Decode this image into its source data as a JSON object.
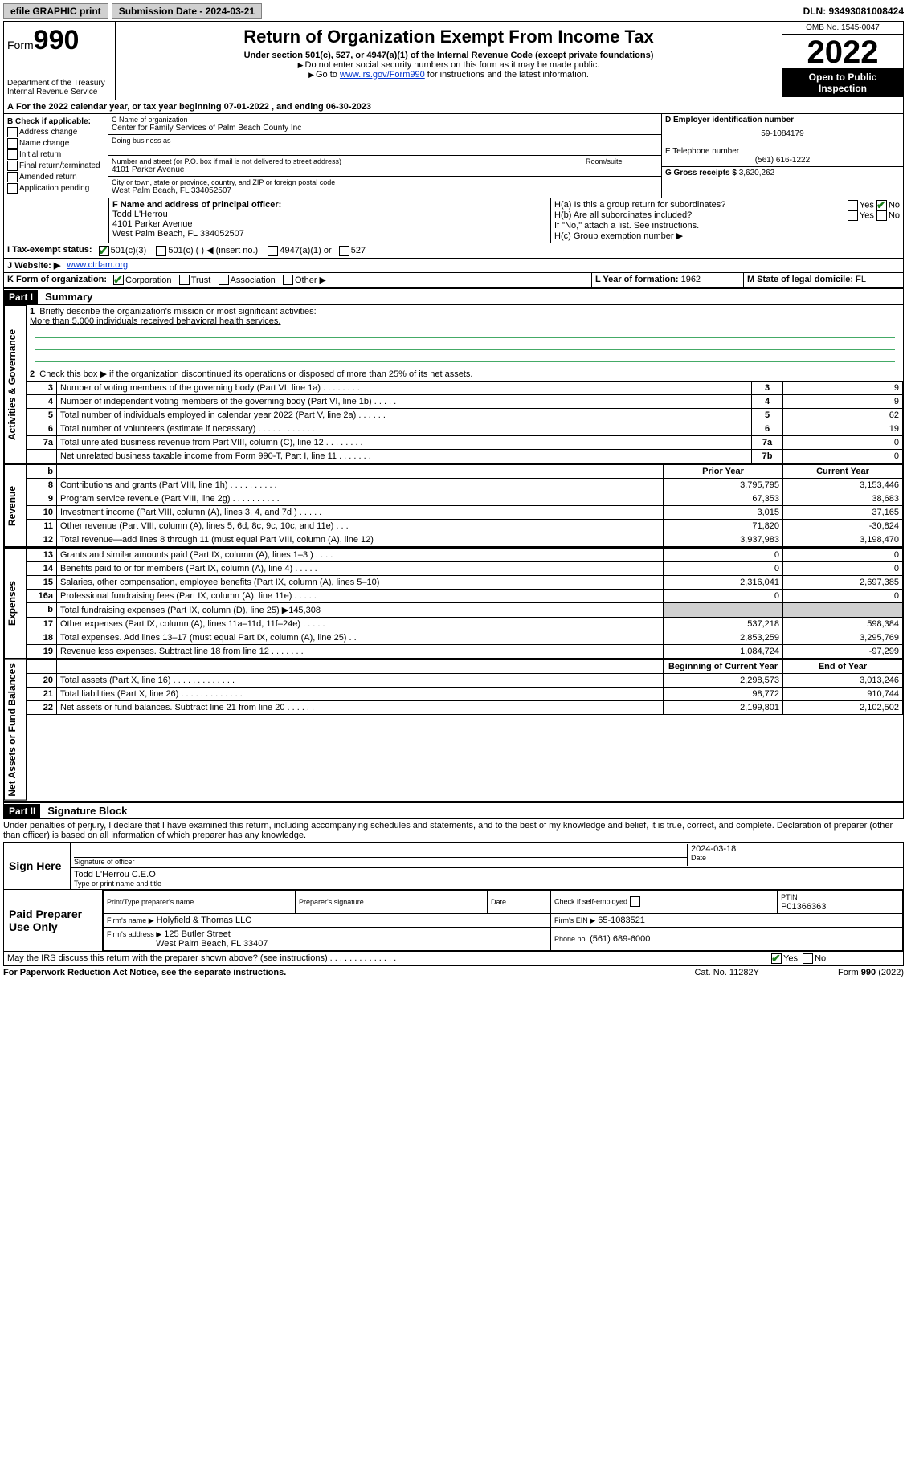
{
  "topbar": {
    "efile": "efile GRAPHIC print",
    "submission_label": "Submission Date - 2024-03-21",
    "dln": "DLN: 93493081008424"
  },
  "header": {
    "form_label": "Form",
    "form_no": "990",
    "dept": "Department of the Treasury",
    "irs": "Internal Revenue Service",
    "title": "Return of Organization Exempt From Income Tax",
    "sub": "Under section 501(c), 527, or 4947(a)(1) of the Internal Revenue Code (except private foundations)",
    "note1": "Do not enter social security numbers on this form as it may be made public.",
    "note2_pre": "Go to ",
    "note2_link": "www.irs.gov/Form990",
    "note2_post": " for instructions and the latest information.",
    "omb": "OMB No. 1545-0047",
    "year": "2022",
    "open": "Open to Public Inspection"
  },
  "taxyear": "For the 2022 calendar year, or tax year beginning 07-01-2022   , and ending 06-30-2023",
  "boxB": {
    "title": "B Check if applicable:",
    "items": [
      "Address change",
      "Name change",
      "Initial return",
      "Final return/terminated",
      "Amended return",
      "Application pending"
    ]
  },
  "boxC": {
    "name_lbl": "C Name of organization",
    "name": "Center for Family Services of Palm Beach County Inc",
    "dba_lbl": "Doing business as",
    "street_lbl": "Number and street (or P.O. box if mail is not delivered to street address)",
    "room_lbl": "Room/suite",
    "street": "4101 Parker Avenue",
    "city_lbl": "City or town, state or province, country, and ZIP or foreign postal code",
    "city": "West Palm Beach, FL  334052507"
  },
  "boxD": {
    "lbl": "D Employer identification number",
    "val": "59-1084179"
  },
  "boxE": {
    "lbl": "E Telephone number",
    "val": "(561) 616-1222"
  },
  "boxG": {
    "lbl": "G Gross receipts $",
    "val": "3,620,262"
  },
  "boxF": {
    "lbl": "F  Name and address of principal officer:",
    "name": "Todd L'Herrou",
    "addr1": "4101 Parker Avenue",
    "addr2": "West Palm Beach, FL  334052507"
  },
  "boxH": {
    "a": "H(a)  Is this a group return for subordinates?",
    "b": "H(b)  Are all subordinates included?",
    "b_note": "If \"No,\" attach a list. See instructions.",
    "c": "H(c)  Group exemption number ▶"
  },
  "lineI": "I  Tax-exempt status:",
  "lineI_opts": [
    "501(c)(3)",
    "501(c) (   ) ◀ (insert no.)",
    "4947(a)(1) or",
    "527"
  ],
  "lineJ_lbl": "J  Website: ▶",
  "lineJ_val": "www.ctrfam.org",
  "lineK": "K Form of organization:",
  "lineK_opts": [
    "Corporation",
    "Trust",
    "Association",
    "Other ▶"
  ],
  "lineL": {
    "lbl": "L Year of formation:",
    "val": "1962"
  },
  "lineM": {
    "lbl": "M State of legal domicile:",
    "val": "FL"
  },
  "part1": {
    "hdr": "Part I",
    "title": "Summary"
  },
  "summary": {
    "gov_label": "Activities & Governance",
    "rev_label": "Revenue",
    "exp_label": "Expenses",
    "net_label": "Net Assets or Fund Balances",
    "line1": "Briefly describe the organization's mission or most significant activities:",
    "mission": "More than 5,000 individuals received behavioral health services.",
    "line2": "Check this box ▶        if the organization discontinued its operations or disposed of more than 25% of its net assets.",
    "rows_single": [
      {
        "n": "3",
        "d": "Number of voting members of the governing body (Part VI, line 1a)   .    .    .    .    .    .    .    .",
        "b": "3",
        "v": "9"
      },
      {
        "n": "4",
        "d": "Number of independent voting members of the governing body (Part VI, line 1b)   .    .    .    .    .",
        "b": "4",
        "v": "9"
      },
      {
        "n": "5",
        "d": "Total number of individuals employed in calendar year 2022 (Part V, line 2a)   .    .    .    .    .    .",
        "b": "5",
        "v": "62"
      },
      {
        "n": "6",
        "d": "Total number of volunteers (estimate if necessary)   .    .    .    .    .    .    .    .    .    .    .    .",
        "b": "6",
        "v": "19"
      },
      {
        "n": "7a",
        "d": "Total unrelated business revenue from Part VIII, column (C), line 12   .    .    .    .    .    .    .    .",
        "b": "7a",
        "v": "0"
      },
      {
        "n": "",
        "d": "Net unrelated business taxable income from Form 990-T, Part I, line 11   .    .    .    .    .    .    .",
        "b": "7b",
        "v": "0"
      }
    ],
    "col_hdr": {
      "b": "b",
      "py": "Prior Year",
      "cy": "Current Year"
    },
    "rows_rev": [
      {
        "n": "8",
        "d": "Contributions and grants (Part VIII, line 1h)   .    .    .    .    .    .    .    .    .    .",
        "py": "3,795,795",
        "cy": "3,153,446"
      },
      {
        "n": "9",
        "d": "Program service revenue (Part VIII, line 2g)   .    .    .    .    .    .    .    .    .    .",
        "py": "67,353",
        "cy": "38,683"
      },
      {
        "n": "10",
        "d": "Investment income (Part VIII, column (A), lines 3, 4, and 7d )   .    .    .    .    .",
        "py": "3,015",
        "cy": "37,165"
      },
      {
        "n": "11",
        "d": "Other revenue (Part VIII, column (A), lines 5, 6d, 8c, 9c, 10c, and 11e)   .    .    .",
        "py": "71,820",
        "cy": "-30,824"
      },
      {
        "n": "12",
        "d": "Total revenue—add lines 8 through 11 (must equal Part VIII, column (A), line 12)",
        "py": "3,937,983",
        "cy": "3,198,470"
      }
    ],
    "rows_exp": [
      {
        "n": "13",
        "d": "Grants and similar amounts paid (Part IX, column (A), lines 1–3 )   .    .    .    .",
        "py": "0",
        "cy": "0"
      },
      {
        "n": "14",
        "d": "Benefits paid to or for members (Part IX, column (A), line 4)   .    .    .    .    .",
        "py": "0",
        "cy": "0"
      },
      {
        "n": "15",
        "d": "Salaries, other compensation, employee benefits (Part IX, column (A), lines 5–10)",
        "py": "2,316,041",
        "cy": "2,697,385"
      },
      {
        "n": "16a",
        "d": "Professional fundraising fees (Part IX, column (A), line 11e)   .    .    .    .    .",
        "py": "0",
        "cy": "0"
      },
      {
        "n": "b",
        "d": "Total fundraising expenses (Part IX, column (D), line 25) ▶145,308",
        "py": "",
        "cy": "",
        "grey": true
      },
      {
        "n": "17",
        "d": "Other expenses (Part IX, column (A), lines 11a–11d, 11f–24e)   .    .    .    .    .",
        "py": "537,218",
        "cy": "598,384"
      },
      {
        "n": "18",
        "d": "Total expenses. Add lines 13–17 (must equal Part IX, column (A), line 25)   .    .",
        "py": "2,853,259",
        "cy": "3,295,769"
      },
      {
        "n": "19",
        "d": "Revenue less expenses. Subtract line 18 from line 12   .    .    .    .    .    .    .",
        "py": "1,084,724",
        "cy": "-97,299"
      }
    ],
    "net_hdr": {
      "py": "Beginning of Current Year",
      "cy": "End of Year"
    },
    "rows_net": [
      {
        "n": "20",
        "d": "Total assets (Part X, line 16)   .    .    .    .    .    .    .    .    .    .    .    .    .",
        "py": "2,298,573",
        "cy": "3,013,246"
      },
      {
        "n": "21",
        "d": "Total liabilities (Part X, line 26)   .    .    .    .    .    .    .    .    .    .    .    .    .",
        "py": "98,772",
        "cy": "910,744"
      },
      {
        "n": "22",
        "d": "Net assets or fund balances. Subtract line 21 from line 20   .    .    .    .    .    .",
        "py": "2,199,801",
        "cy": "2,102,502"
      }
    ]
  },
  "part2": {
    "hdr": "Part II",
    "title": "Signature Block"
  },
  "sig": {
    "decl": "Under penalties of perjury, I declare that I have examined this return, including accompanying schedules and statements, and to the best of my knowledge and belief, it is true, correct, and complete. Declaration of preparer (other than officer) is based on all information of which preparer has any knowledge.",
    "sign_here": "Sign Here",
    "sig_officer": "Signature of officer",
    "date_lbl": "Date",
    "date": "2024-03-18",
    "name": "Todd L'Herrou C.E.O",
    "name_lbl": "Type or print name and title",
    "paid": "Paid Preparer Use Only",
    "prep_name_lbl": "Print/Type preparer's name",
    "prep_sig_lbl": "Preparer's signature",
    "check_lbl": "Check         if self-employed",
    "ptin_lbl": "PTIN",
    "ptin": "P01366363",
    "firm_name_lbl": "Firm's name    ▶",
    "firm_name": "Holyfield & Thomas LLC",
    "firm_ein_lbl": "Firm's EIN ▶",
    "firm_ein": "65-1083521",
    "firm_addr_lbl": "Firm's address ▶",
    "firm_addr1": "125 Butler Street",
    "firm_addr2": "West Palm Beach, FL  33407",
    "phone_lbl": "Phone no.",
    "phone": "(561) 689-6000",
    "discuss": "May the IRS discuss this return with the preparer shown above? (see instructions)   .    .    .    .    .    .    .    .    .    .    .    .    .    ."
  },
  "footer": {
    "pra": "For Paperwork Reduction Act Notice, see the separate instructions.",
    "cat": "Cat. No. 11282Y",
    "form": "Form 990 (2022)"
  }
}
